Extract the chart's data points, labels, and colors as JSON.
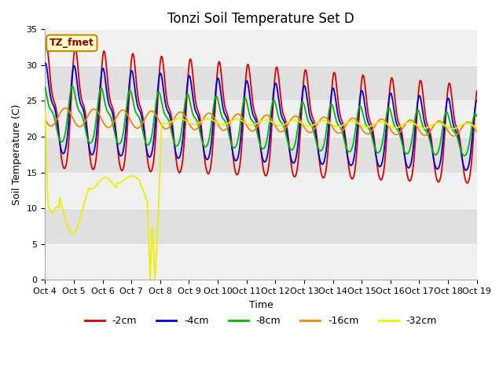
{
  "title": "Tonzi Soil Temperature Set D",
  "xlabel": "Time",
  "ylabel": "Soil Temperature (C)",
  "ylim": [
    0,
    35
  ],
  "xlim": [
    0,
    15
  ],
  "x_tick_labels": [
    "Oct 4",
    "Oct 5",
    "Oct 6",
    "Oct 7",
    "Oct 8",
    "Oct 9",
    "Oct 10",
    "Oct 11",
    "Oct 12",
    "Oct 13",
    "Oct 14",
    "Oct 15",
    "Oct 16",
    "Oct 17",
    "Oct 18",
    "Oct 19"
  ],
  "colors": {
    "-2cm": "#dd0000",
    "-4cm": "#0000dd",
    "-8cm": "#00bb00",
    "-16cm": "#ee8800",
    "-32cm": "#eeee00"
  },
  "annotation_label": "TZ_fmet",
  "annotation_bg": "#ffffcc",
  "annotation_border": "#cc8800",
  "background_color": "#ffffff",
  "title_fontsize": 12,
  "label_fontsize": 9,
  "tick_fontsize": 8,
  "band_light": "#f0f0f0",
  "band_dark": "#e0e0e0"
}
